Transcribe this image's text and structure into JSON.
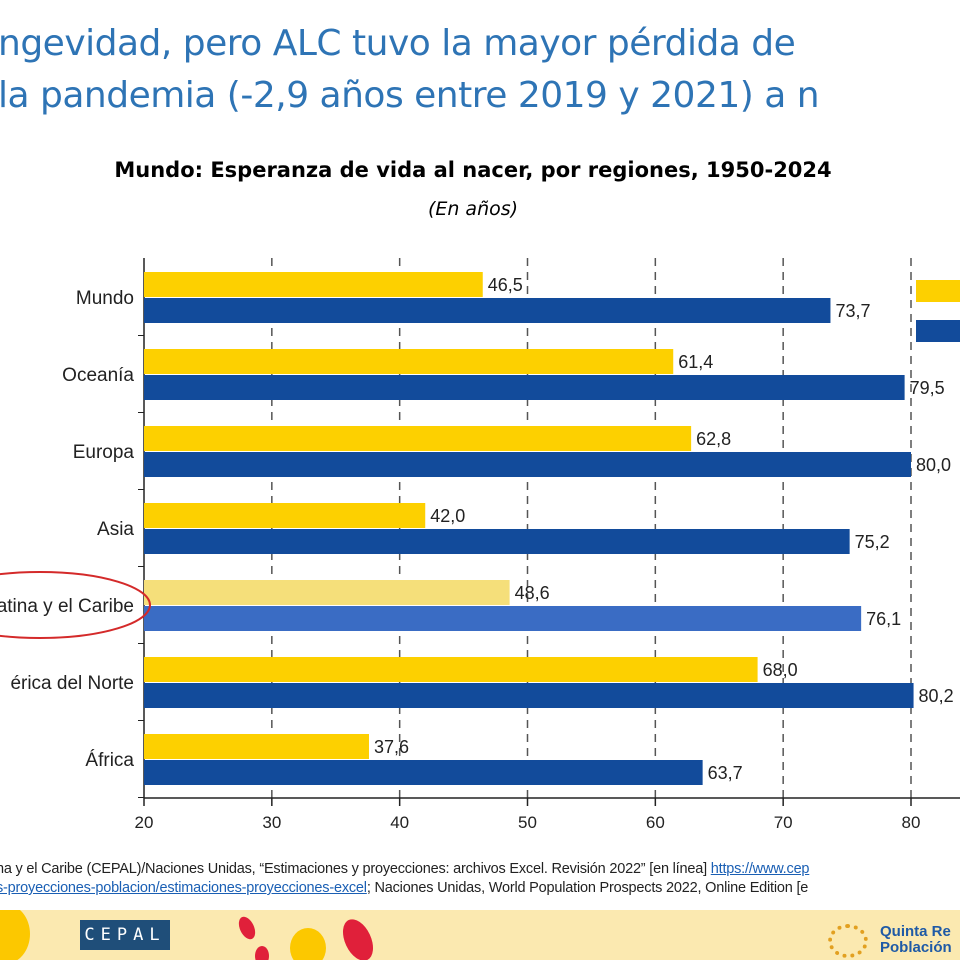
{
  "slide": {
    "title_lines": [
      "ngevidad, pero ALC tuvo la mayor pérdida de",
      "la pandemia (-2,9 años entre 2019 y 2021) a n"
    ],
    "source_line1": "na y el Caribe (CEPAL)/Naciones Unidas, “Estimaciones y proyecciones: archivos Excel. Revisión 2022” [en línea] ",
    "source_link1": "https://www.cep",
    "source_link2": "s-proyecciones-poblacion/estimaciones-proyecciones-excel",
    "source_line2": "; Naciones Unidas, World Population Prospects 2022, Online Edition [e",
    "footer_logo_left": "CEPAL",
    "footer_logo_right_lines": [
      "Quinta Re",
      "Población"
    ]
  },
  "chart_data": {
    "type": "bar",
    "orientation": "horizontal",
    "title": "Mundo: Esperanza de vida al nacer, por regiones, 1950-2024",
    "subtitle": "(En años)",
    "categories": [
      "Mundo",
      "Oceanía",
      "Europa",
      "Asia",
      "atina y el Caribe",
      "érica del Norte",
      "África"
    ],
    "highlighted_category": "atina y el Caribe",
    "series": [
      {
        "color": "#fdd000",
        "highlight_color": "#f5df7a",
        "values": [
          46.5,
          61.4,
          62.8,
          42.0,
          48.6,
          68.0,
          37.6
        ]
      },
      {
        "color": "#124b9b",
        "highlight_color": "#3a6cc4",
        "values": [
          73.7,
          79.5,
          80.0,
          75.2,
          76.1,
          80.2,
          63.7
        ]
      }
    ],
    "data_labels": [
      [
        "46,5",
        "61,4",
        "62,8",
        "42,0",
        "48,6",
        "68,0",
        "37,6"
      ],
      [
        "73,7",
        "79,5",
        "80,0",
        "75,2",
        "76,1",
        "80,2",
        "63,7"
      ]
    ],
    "xlim": [
      20,
      85
    ],
    "xticks": [
      "20",
      "30",
      "40",
      "50",
      "60",
      "70",
      "80"
    ],
    "grid": "vertical dashed",
    "legend_placement": "top-right (cropped, swatches only)"
  }
}
